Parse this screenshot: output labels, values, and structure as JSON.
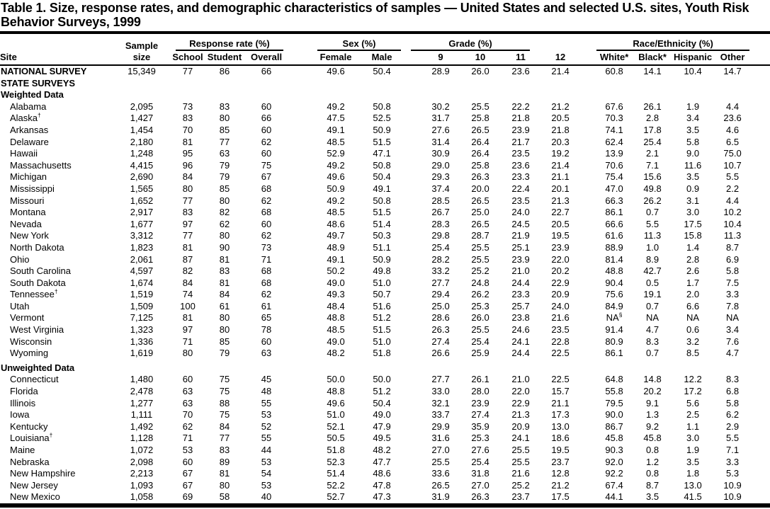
{
  "page": {
    "title_lines": [
      "Table 1. Size, response rates, and demographic characteristics of samples — United States and selected U.S. sites, Youth Risk",
      "Behavior Surveys, 1999"
    ]
  },
  "table": {
    "site_header": "Site",
    "sample_header_line1": "Sample",
    "sample_header_line2": "size",
    "groups": [
      {
        "label": "Response rate (%)",
        "columns": [
          "School",
          "Student",
          "Overall"
        ]
      },
      {
        "label": "Sex (%)",
        "columns": [
          "Female",
          "Male"
        ]
      },
      {
        "label": "Grade (%)",
        "columns": [
          "9",
          "10",
          "11",
          "12"
        ]
      },
      {
        "label": "Race/Ethnicity (%)",
        "columns": [
          "White*",
          "Black*",
          "Hispanic",
          "Other"
        ]
      }
    ],
    "rows": [
      {
        "type": "data",
        "emphasis": true,
        "site": "NATIONAL SURVEY",
        "values": [
          "15,349",
          "77",
          "86",
          "66",
          "49.6",
          "50.4",
          "28.9",
          "26.0",
          "23.6",
          "21.4",
          "60.8",
          "14.1",
          "10.4",
          "14.7"
        ]
      },
      {
        "type": "section",
        "label": "STATE SURVEYS"
      },
      {
        "type": "section",
        "label": "Weighted Data"
      },
      {
        "type": "data",
        "site": "Alabama",
        "values": [
          "2,095",
          "73",
          "83",
          "60",
          "49.2",
          "50.8",
          "30.2",
          "25.5",
          "22.2",
          "21.2",
          "67.6",
          "26.1",
          "1.9",
          "4.4"
        ]
      },
      {
        "type": "data",
        "site": "Alaska†",
        "values": [
          "1,427",
          "83",
          "80",
          "66",
          "47.5",
          "52.5",
          "31.7",
          "25.8",
          "21.8",
          "20.5",
          "70.3",
          "2.8",
          "3.4",
          "23.6"
        ]
      },
      {
        "type": "data",
        "site": "Arkansas",
        "values": [
          "1,454",
          "70",
          "85",
          "60",
          "49.1",
          "50.9",
          "27.6",
          "26.5",
          "23.9",
          "21.8",
          "74.1",
          "17.8",
          "3.5",
          "4.6"
        ]
      },
      {
        "type": "data",
        "site": "Delaware",
        "values": [
          "2,180",
          "81",
          "77",
          "62",
          "48.5",
          "51.5",
          "31.4",
          "26.4",
          "21.7",
          "20.3",
          "62.4",
          "25.4",
          "5.8",
          "6.5"
        ]
      },
      {
        "type": "data",
        "site": "Hawaii",
        "values": [
          "1,248",
          "95",
          "63",
          "60",
          "52.9",
          "47.1",
          "30.9",
          "26.4",
          "23.5",
          "19.2",
          "13.9",
          "2.1",
          "9.0",
          "75.0"
        ]
      },
      {
        "type": "data",
        "site": "Massachusetts",
        "values": [
          "4,415",
          "96",
          "79",
          "75",
          "49.2",
          "50.8",
          "29.0",
          "25.8",
          "23.6",
          "21.4",
          "70.6",
          "7.1",
          "11.6",
          "10.7"
        ]
      },
      {
        "type": "data",
        "site": "Michigan",
        "values": [
          "2,690",
          "84",
          "79",
          "67",
          "49.6",
          "50.4",
          "29.3",
          "26.3",
          "23.3",
          "21.1",
          "75.4",
          "15.6",
          "3.5",
          "5.5"
        ]
      },
      {
        "type": "data",
        "site": "Mississippi",
        "values": [
          "1,565",
          "80",
          "85",
          "68",
          "50.9",
          "49.1",
          "37.4",
          "20.0",
          "22.4",
          "20.1",
          "47.0",
          "49.8",
          "0.9",
          "2.2"
        ]
      },
      {
        "type": "data",
        "site": "Missouri",
        "values": [
          "1,652",
          "77",
          "80",
          "62",
          "49.2",
          "50.8",
          "28.5",
          "26.5",
          "23.5",
          "21.3",
          "66.3",
          "26.2",
          "3.1",
          "4.4"
        ]
      },
      {
        "type": "data",
        "site": "Montana",
        "values": [
          "2,917",
          "83",
          "82",
          "68",
          "48.5",
          "51.5",
          "26.7",
          "25.0",
          "24.0",
          "22.7",
          "86.1",
          "0.7",
          "3.0",
          "10.2"
        ]
      },
      {
        "type": "data",
        "site": "Nevada",
        "values": [
          "1,677",
          "97",
          "62",
          "60",
          "48.6",
          "51.4",
          "28.3",
          "26.5",
          "24.5",
          "20.5",
          "66.6",
          "5.5",
          "17.5",
          "10.4"
        ]
      },
      {
        "type": "data",
        "site": "New York",
        "values": [
          "3,312",
          "77",
          "80",
          "62",
          "49.7",
          "50.3",
          "29.8",
          "28.7",
          "21.9",
          "19.5",
          "61.6",
          "11.3",
          "15.8",
          "11.3"
        ]
      },
      {
        "type": "data",
        "site": "North Dakota",
        "values": [
          "1,823",
          "81",
          "90",
          "73",
          "48.9",
          "51.1",
          "25.4",
          "25.5",
          "25.1",
          "23.9",
          "88.9",
          "1.0",
          "1.4",
          "8.7"
        ]
      },
      {
        "type": "data",
        "site": "Ohio",
        "values": [
          "2,061",
          "87",
          "81",
          "71",
          "49.1",
          "50.9",
          "28.2",
          "25.5",
          "23.9",
          "22.0",
          "81.4",
          "8.9",
          "2.8",
          "6.9"
        ]
      },
      {
        "type": "data",
        "site": "South Carolina",
        "values": [
          "4,597",
          "82",
          "83",
          "68",
          "50.2",
          "49.8",
          "33.2",
          "25.2",
          "21.0",
          "20.2",
          "48.8",
          "42.7",
          "2.6",
          "5.8"
        ]
      },
      {
        "type": "data",
        "site": "South Dakota",
        "values": [
          "1,674",
          "84",
          "81",
          "68",
          "49.0",
          "51.0",
          "27.7",
          "24.8",
          "24.4",
          "22.9",
          "90.4",
          "0.5",
          "1.7",
          "7.5"
        ]
      },
      {
        "type": "data",
        "site": "Tennessee†",
        "values": [
          "1,519",
          "74",
          "84",
          "62",
          "49.3",
          "50.7",
          "29.4",
          "26.2",
          "23.3",
          "20.9",
          "75.6",
          "19.1",
          "2.0",
          "3.3"
        ]
      },
      {
        "type": "data",
        "site": "Utah",
        "values": [
          "1,509",
          "100",
          "61",
          "61",
          "48.4",
          "51.6",
          "25.0",
          "25.3",
          "25.7",
          "24.0",
          "84.9",
          "0.7",
          "6.6",
          "7.8"
        ]
      },
      {
        "type": "data",
        "site": "Vermont",
        "values": [
          "7,125",
          "81",
          "80",
          "65",
          "48.8",
          "51.2",
          "28.6",
          "26.0",
          "23.8",
          "21.6",
          "NA§",
          "NA",
          "NA",
          "NA"
        ]
      },
      {
        "type": "data",
        "site": "West Virginia",
        "values": [
          "1,323",
          "97",
          "80",
          "78",
          "48.5",
          "51.5",
          "26.3",
          "25.5",
          "24.6",
          "23.5",
          "91.4",
          "4.7",
          "0.6",
          "3.4"
        ]
      },
      {
        "type": "data",
        "site": "Wisconsin",
        "values": [
          "1,336",
          "71",
          "85",
          "60",
          "49.0",
          "51.0",
          "27.4",
          "25.4",
          "24.1",
          "22.8",
          "80.9",
          "8.3",
          "3.2",
          "7.6"
        ]
      },
      {
        "type": "data",
        "site": "Wyoming",
        "values": [
          "1,619",
          "80",
          "79",
          "63",
          "48.2",
          "51.8",
          "26.6",
          "25.9",
          "24.4",
          "22.5",
          "86.1",
          "0.7",
          "8.5",
          "4.7"
        ]
      },
      {
        "type": "section",
        "label": "Unweighted Data",
        "spaced": true
      },
      {
        "type": "data",
        "site": "Connecticut",
        "values": [
          "1,480",
          "60",
          "75",
          "45",
          "50.0",
          "50.0",
          "27.7",
          "26.1",
          "21.0",
          "22.5",
          "64.8",
          "14.8",
          "12.2",
          "8.3"
        ]
      },
      {
        "type": "data",
        "site": "Florida",
        "values": [
          "2,478",
          "63",
          "75",
          "48",
          "48.8",
          "51.2",
          "33.0",
          "28.0",
          "22.0",
          "15.7",
          "55.8",
          "20.2",
          "17.2",
          "6.8"
        ]
      },
      {
        "type": "data",
        "site": "Illinois",
        "values": [
          "1,277",
          "63",
          "88",
          "55",
          "49.6",
          "50.4",
          "32.1",
          "23.9",
          "22.9",
          "21.1",
          "79.5",
          "9.1",
          "5.6",
          "5.8"
        ]
      },
      {
        "type": "data",
        "site": "Iowa",
        "values": [
          "1,111",
          "70",
          "75",
          "53",
          "51.0",
          "49.0",
          "33.7",
          "27.4",
          "21.3",
          "17.3",
          "90.0",
          "1.3",
          "2.5",
          "6.2"
        ]
      },
      {
        "type": "data",
        "site": "Kentucky",
        "values": [
          "1,492",
          "62",
          "84",
          "52",
          "52.1",
          "47.9",
          "29.9",
          "35.9",
          "20.9",
          "13.0",
          "86.7",
          "9.2",
          "1.1",
          "2.9"
        ]
      },
      {
        "type": "data",
        "site": "Louisiana†",
        "values": [
          "1,128",
          "71",
          "77",
          "55",
          "50.5",
          "49.5",
          "31.6",
          "25.3",
          "24.1",
          "18.6",
          "45.8",
          "45.8",
          "3.0",
          "5.5"
        ]
      },
      {
        "type": "data",
        "site": "Maine",
        "values": [
          "1,072",
          "53",
          "83",
          "44",
          "51.8",
          "48.2",
          "27.0",
          "27.6",
          "25.5",
          "19.5",
          "90.3",
          "0.8",
          "1.9",
          "7.1"
        ]
      },
      {
        "type": "data",
        "site": "Nebraska",
        "values": [
          "2,098",
          "60",
          "89",
          "53",
          "52.3",
          "47.7",
          "25.5",
          "25.4",
          "25.5",
          "23.7",
          "92.0",
          "1.2",
          "3.5",
          "3.3"
        ]
      },
      {
        "type": "data",
        "site": "New Hampshire",
        "values": [
          "2,213",
          "67",
          "81",
          "54",
          "51.4",
          "48.6",
          "33.6",
          "31.8",
          "21.6",
          "12.8",
          "92.2",
          "0.8",
          "1.8",
          "5.3"
        ]
      },
      {
        "type": "data",
        "site": "New Jersey",
        "values": [
          "1,093",
          "67",
          "80",
          "53",
          "52.2",
          "47.8",
          "26.5",
          "27.0",
          "25.2",
          "21.2",
          "67.4",
          "8.7",
          "13.0",
          "10.9"
        ]
      },
      {
        "type": "data",
        "site": "New Mexico",
        "values": [
          "1,058",
          "69",
          "58",
          "40",
          "52.7",
          "47.3",
          "31.9",
          "26.3",
          "23.7",
          "17.5",
          "44.1",
          "3.5",
          "41.5",
          "10.9"
        ]
      }
    ]
  }
}
